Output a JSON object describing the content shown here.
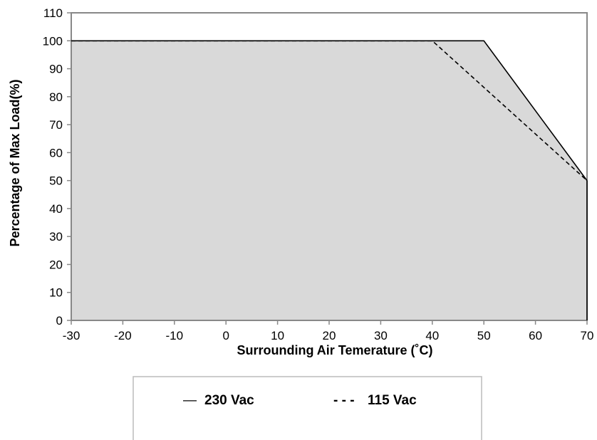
{
  "chart_data": {
    "type": "area",
    "xlabel": "Surrounding Air Temerature (˚C)",
    "ylabel": "Percentage of Max Load(%)",
    "xlim": [
      -30,
      70
    ],
    "ylim": [
      0,
      110
    ],
    "x_ticks": [
      "-30",
      "-20",
      "-10",
      "0",
      "10",
      "20",
      "30",
      "40",
      "50",
      "60",
      "70"
    ],
    "y_ticks": [
      "0",
      "10",
      "20",
      "30",
      "40",
      "50",
      "60",
      "70",
      "80",
      "90",
      "100",
      "110"
    ],
    "grid": false,
    "legend_position": "bottom",
    "fill_color": "#d9d9d9",
    "series": [
      {
        "name": "230 Vac",
        "style": "solid",
        "legend_marker": "—",
        "x": [
          -30,
          50,
          70
        ],
        "y": [
          100,
          100,
          50
        ]
      },
      {
        "name": "115 Vac",
        "style": "dashed",
        "legend_marker": "- - -",
        "x": [
          -30,
          40,
          70
        ],
        "y": [
          100,
          100,
          50
        ]
      }
    ]
  }
}
